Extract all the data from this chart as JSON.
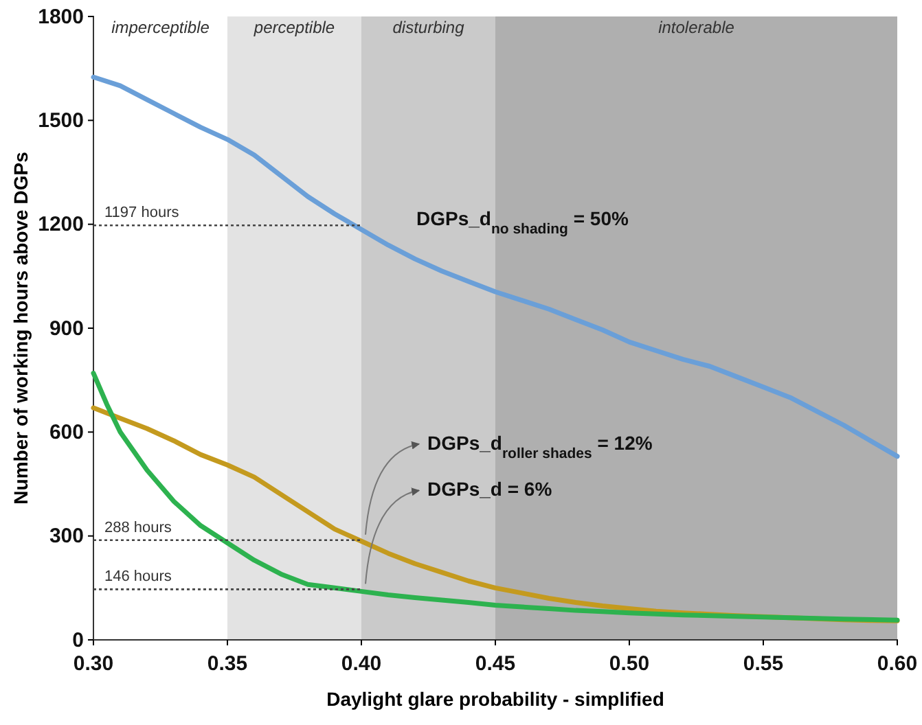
{
  "chart_data": {
    "type": "line",
    "xlabel": "Daylight glare probability - simplified",
    "ylabel": "Number of working hours above DGPs",
    "xlim": [
      0.3,
      0.6
    ],
    "xticks": [
      {
        "value": 0.3,
        "label": "0.30"
      },
      {
        "value": 0.35,
        "label": "0.35"
      },
      {
        "value": 0.4,
        "label": "0.40"
      },
      {
        "value": 0.45,
        "label": "0.45"
      },
      {
        "value": 0.5,
        "label": "0.50"
      },
      {
        "value": 0.55,
        "label": "0.55"
      },
      {
        "value": 0.6,
        "label": "0.60"
      }
    ],
    "ylim": [
      0,
      1800
    ],
    "yticks": [
      0,
      300,
      600,
      900,
      1200,
      1500,
      1800
    ],
    "bands": [
      {
        "axis": "x",
        "from": 0.35,
        "to": 0.4,
        "label": "perceptible",
        "color": "#e3e3e3"
      },
      {
        "axis": "x",
        "from": 0.4,
        "to": 0.45,
        "label": "disturbing",
        "color": "#cacaca"
      },
      {
        "axis": "x",
        "from": 0.45,
        "to": 0.6,
        "label": "intolerable",
        "color": "#afafaf"
      }
    ],
    "series": [
      {
        "color": "#6a9fd8",
        "x": [
          0.3,
          0.31,
          0.32,
          0.33,
          0.34,
          0.35,
          0.36,
          0.37,
          0.38,
          0.39,
          0.4,
          0.41,
          0.42,
          0.43,
          0.44,
          0.45,
          0.46,
          0.47,
          0.48,
          0.49,
          0.5,
          0.51,
          0.52,
          0.53,
          0.54,
          0.55,
          0.56,
          0.57,
          0.58,
          0.59,
          0.6
        ],
        "values": [
          1625,
          1600,
          1560,
          1520,
          1480,
          1445,
          1400,
          1340,
          1280,
          1230,
          1185,
          1140,
          1100,
          1065,
          1035,
          1005,
          980,
          955,
          925,
          895,
          860,
          835,
          810,
          790,
          760,
          730,
          700,
          660,
          620,
          575,
          530
        ]
      },
      {
        "color": "#c49a1e",
        "x": [
          0.3,
          0.31,
          0.32,
          0.33,
          0.34,
          0.35,
          0.36,
          0.37,
          0.38,
          0.39,
          0.4,
          0.41,
          0.42,
          0.43,
          0.44,
          0.45,
          0.46,
          0.47,
          0.48,
          0.49,
          0.5,
          0.51,
          0.52,
          0.53,
          0.54,
          0.55,
          0.56,
          0.57,
          0.58,
          0.59,
          0.6
        ],
        "values": [
          670,
          640,
          610,
          575,
          535,
          505,
          470,
          420,
          370,
          320,
          285,
          250,
          220,
          195,
          170,
          150,
          135,
          120,
          108,
          98,
          90,
          83,
          78,
          74,
          70,
          67,
          64,
          61,
          58,
          56,
          55
        ]
      },
      {
        "color": "#2db24f",
        "x": [
          0.3,
          0.305,
          0.31,
          0.32,
          0.33,
          0.34,
          0.35,
          0.36,
          0.37,
          0.38,
          0.39,
          0.4,
          0.41,
          0.42,
          0.43,
          0.44,
          0.45,
          0.46,
          0.47,
          0.48,
          0.49,
          0.5,
          0.52,
          0.54,
          0.56,
          0.58,
          0.6
        ],
        "values": [
          770,
          680,
          600,
          490,
          400,
          330,
          280,
          230,
          190,
          160,
          150,
          140,
          130,
          122,
          115,
          108,
          100,
          95,
          90,
          85,
          82,
          78,
          72,
          68,
          64,
          60,
          57
        ]
      }
    ],
    "ref_lines": [
      {
        "axis": "y",
        "value": 1197,
        "label": "1197 hours",
        "color": "#444444",
        "line_style": "dotted"
      },
      {
        "axis": "y",
        "value": 288,
        "label": "288 hours",
        "color": "#444444",
        "line_style": "dotted"
      },
      {
        "axis": "y",
        "value": 146,
        "label": "146 hours",
        "color": "#444444",
        "line_style": "dotted"
      }
    ],
    "annotations": [
      "imperceptible",
      "DGPs_d$_{no shading}$ = 50%",
      {
        "text": "DGPs_d$_{roller shades}$ = 12%",
        "x": 0.4,
        "y": 288
      },
      {
        "text": "DGPs_d = 6%",
        "x": 0.4,
        "y": 146
      }
    ],
    "grid": false,
    "marker": "none",
    "line_style": "solid"
  }
}
